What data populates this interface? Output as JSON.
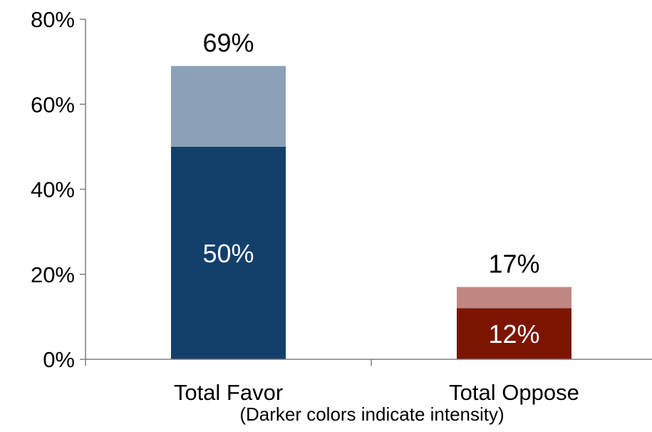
{
  "chart_data": {
    "type": "bar",
    "stacked": true,
    "categories": [
      "Total Favor",
      "Total Oppose"
    ],
    "total_labels": [
      "69%",
      "17%"
    ],
    "totals": [
      69,
      17
    ],
    "strong_values": [
      50,
      12
    ],
    "strong_labels": [
      "50%",
      "12%"
    ],
    "colors": {
      "favor_strong": "#133f6b",
      "favor_light": "#8aa1b8",
      "oppose_strong": "#7b1500",
      "oppose_light": "#bf8781"
    },
    "ylim": [
      0,
      80
    ],
    "yticks": [
      0,
      20,
      40,
      60,
      80
    ],
    "ytick_labels": [
      "0%",
      "20%",
      "40%",
      "60%",
      "80%"
    ],
    "note": "(Darker colors indicate intensity)",
    "grid": false,
    "legend": "none"
  }
}
